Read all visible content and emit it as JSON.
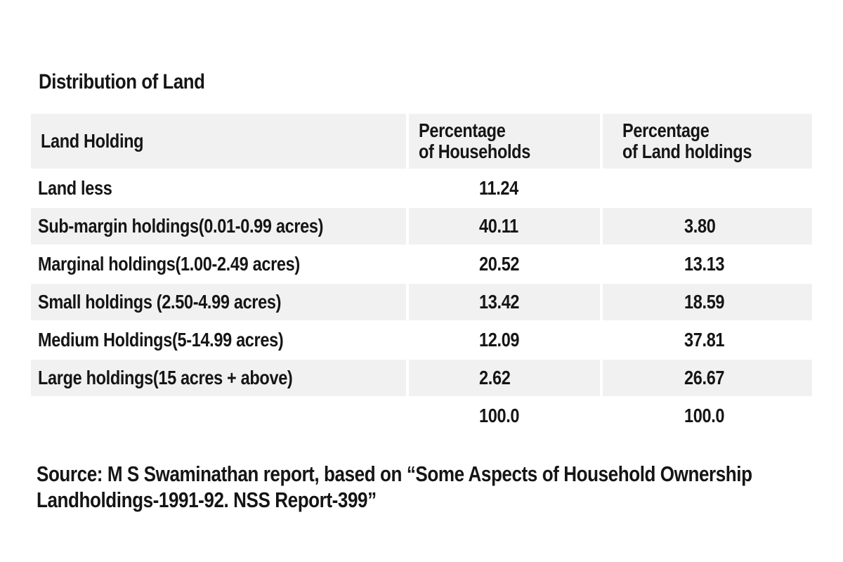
{
  "title": "Distribution of Land",
  "table": {
    "headers": {
      "col1": "Land Holding",
      "col2_line1": "Percentage",
      "col2_line2": "of Households",
      "col3_line1": "Percentage",
      "col3_line2": "of Land holdings"
    },
    "rows": [
      {
        "label": "Land less",
        "households": "11.24",
        "land": ""
      },
      {
        "label": "Sub-margin holdings(0.01-0.99 acres)",
        "households": "40.11",
        "land": "3.80"
      },
      {
        "label": "Marginal holdings(1.00-2.49 acres)",
        "households": "20.52",
        "land": "13.13"
      },
      {
        "label": "Small holdings (2.50-4.99 acres)",
        "households": "13.42",
        "land": "18.59"
      },
      {
        "label": "Medium Holdings(5-14.99 acres)",
        "households": "12.09",
        "land": "37.81"
      },
      {
        "label": "Large holdings(15 acres + above)",
        "households": "2.62",
        "land": "26.67"
      },
      {
        "label": "",
        "households": "100.0",
        "land": "100.0"
      }
    ]
  },
  "source": {
    "line1": "Source: M S Swaminathan report, based on “Some Aspects of Household Ownership",
    "line2": "Landholdings-1991-92. NSS Report-399”"
  }
}
